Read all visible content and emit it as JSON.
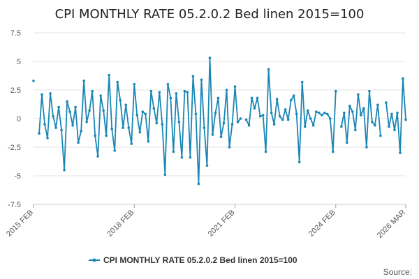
{
  "chart_data": {
    "type": "line",
    "title": "CPI MONTHLY RATE 05.2.0.2 Bed linen 2015=100",
    "xlabel": "",
    "ylabel": "",
    "ylim": [
      -7.5,
      7.5
    ],
    "yticks": [
      "7.5",
      "5",
      "2.5",
      "0",
      "-2.5",
      "-5",
      "-7.5"
    ],
    "ytick_values": [
      7.5,
      5,
      2.5,
      0,
      -2.5,
      -5,
      -7.5
    ],
    "xticks": [
      "2015 FEB",
      "2018 FEB",
      "2021 FEB",
      "2024 FEB",
      "2026 MAR"
    ],
    "xtick_index": [
      0,
      36,
      72,
      108,
      133
    ],
    "grid": true,
    "legend_position": "bottom",
    "series": [
      {
        "name": "CPI MONTHLY RATE 05.2.0.2 Bed linen 2015=100",
        "color": "#1a86b5",
        "values": [
          3.3,
          null,
          -1.3,
          2.1,
          -0.5,
          -1.7,
          2.2,
          0.2,
          -0.8,
          1.0,
          -1.0,
          -4.5,
          1.5,
          0.6,
          -0.6,
          1.0,
          -2.1,
          -1.1,
          3.3,
          -0.3,
          0.7,
          2.4,
          -1.5,
          -3.3,
          2.0,
          0.7,
          -1.5,
          3.8,
          -0.9,
          -2.8,
          3.2,
          1.6,
          -0.8,
          1.2,
          -0.8,
          -2.2,
          3.0,
          0.3,
          -1.2,
          0.6,
          0.4,
          -2.0,
          2.4,
          0.9,
          -0.4,
          2.3,
          -0.5,
          -4.9,
          3.0,
          1.8,
          -2.9,
          2.2,
          -0.3,
          -3.4,
          2.4,
          2.3,
          -3.4,
          3.7,
          0.4,
          -5.7,
          3.4,
          -0.8,
          -4.1,
          5.3,
          -1.4,
          0.5,
          1.8,
          -1.6,
          -0.4,
          2.5,
          -2.5,
          -0.5,
          2.8,
          -0.3,
          0.0,
          null,
          -0.1,
          -0.6,
          1.8,
          0.9,
          1.8,
          0.2,
          0.3,
          -2.9,
          4.3,
          0.5,
          -0.5,
          1.7,
          0.2,
          -0.1,
          0.8,
          -0.1,
          1.6,
          2.0,
          0.4,
          -3.8,
          3.2,
          -0.7,
          0.7,
          0.0,
          -0.6,
          0.6,
          0.5,
          0.3,
          0.5,
          0.4,
          0.0,
          -2.9,
          2.4,
          null,
          -0.7,
          0.5,
          -2.1,
          1.1,
          0.6,
          -1.0,
          2.1,
          0.3,
          0.9,
          -2.5,
          2.4,
          -0.3,
          -0.6,
          1.2,
          -1.5,
          null,
          1.4,
          -0.7,
          0.4,
          -1.0,
          0.5,
          -3.0,
          3.5,
          -0.1
        ]
      }
    ]
  },
  "legend": {
    "label": "CPI MONTHLY RATE 05.2.0.2 Bed linen 2015=100"
  },
  "footer": {
    "source_label": "Source:"
  }
}
